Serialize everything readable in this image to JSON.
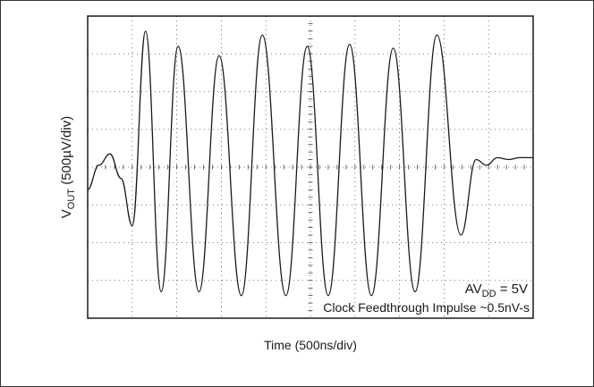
{
  "chart_data": {
    "type": "line",
    "title": "",
    "xlabel": "Time (500ns/div)",
    "ylabel": "V",
    "ylabel_sub": "OUT",
    "ylabel_unit": " (500µV/div)",
    "x_divisions": 10,
    "y_divisions": 8,
    "xlim": [
      0,
      10
    ],
    "ylim": [
      -4,
      4
    ],
    "grid": true,
    "series": [
      {
        "x": [
          0,
          0.25,
          0.5,
          0.75,
          1.0,
          1.3,
          1.65,
          2.03,
          2.5,
          2.95,
          3.45,
          3.92,
          4.45,
          4.93,
          5.4,
          5.88,
          6.37,
          6.86,
          7.35,
          7.84,
          8.38,
          8.72,
          8.95,
          9.2,
          9.45,
          9.7,
          10.0
        ],
        "y": [
          -0.6,
          0.05,
          0.35,
          -0.3,
          -1.55,
          3.6,
          -3.3,
          3.2,
          -3.3,
          2.95,
          -3.4,
          3.5,
          -3.4,
          3.2,
          -3.4,
          3.25,
          -3.4,
          3.15,
          -3.3,
          3.5,
          -1.8,
          0.2,
          0.05,
          0.25,
          0.2,
          0.25,
          0.25
        ]
      }
    ],
    "annotations": {
      "supply_main": "AV",
      "supply_sub": "DD",
      "supply_value": " = 5V",
      "impulse": "Clock Feedthrough Impulse ~0.5nV-s"
    }
  }
}
